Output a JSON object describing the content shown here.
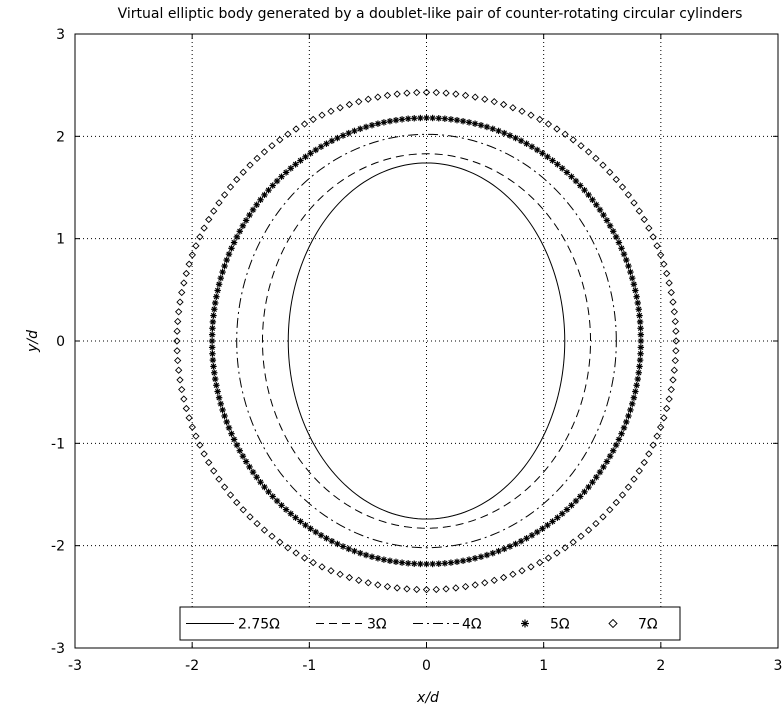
{
  "chart_data": {
    "type": "line",
    "title": "Virtual elliptic body generated by a doublet-like pair of counter-rotating circular cylinders",
    "xlabel": "x/d",
    "ylabel": "y/d",
    "xlim": [
      -3,
      3
    ],
    "ylim": [
      -3,
      3
    ],
    "xticks": [
      "-3",
      "-2",
      "-1",
      "0",
      "1",
      "2",
      "3"
    ],
    "yticks": [
      "-3",
      "-2",
      "-1",
      "0",
      "1",
      "2",
      "3"
    ],
    "grid": true,
    "grid_style": "dotted",
    "legend_position": "bottom-center",
    "series": [
      {
        "name": "2.75Ω",
        "style": "solid",
        "center": [
          0,
          0
        ],
        "semi_x": 1.18,
        "semi_y": 1.74
      },
      {
        "name": "3Ω",
        "style": "dashed",
        "center": [
          0,
          0
        ],
        "semi_x": 1.4,
        "semi_y": 1.83
      },
      {
        "name": "4Ω",
        "style": "dashdot",
        "center": [
          0,
          0
        ],
        "semi_x": 1.62,
        "semi_y": 2.02
      },
      {
        "name": "5Ω",
        "style": "asterisk",
        "center": [
          0,
          0
        ],
        "semi_x": 1.83,
        "semi_y": 2.18
      },
      {
        "name": "7Ω",
        "style": "diamond",
        "center": [
          0,
          0
        ],
        "semi_x": 2.13,
        "semi_y": 2.43
      }
    ]
  }
}
